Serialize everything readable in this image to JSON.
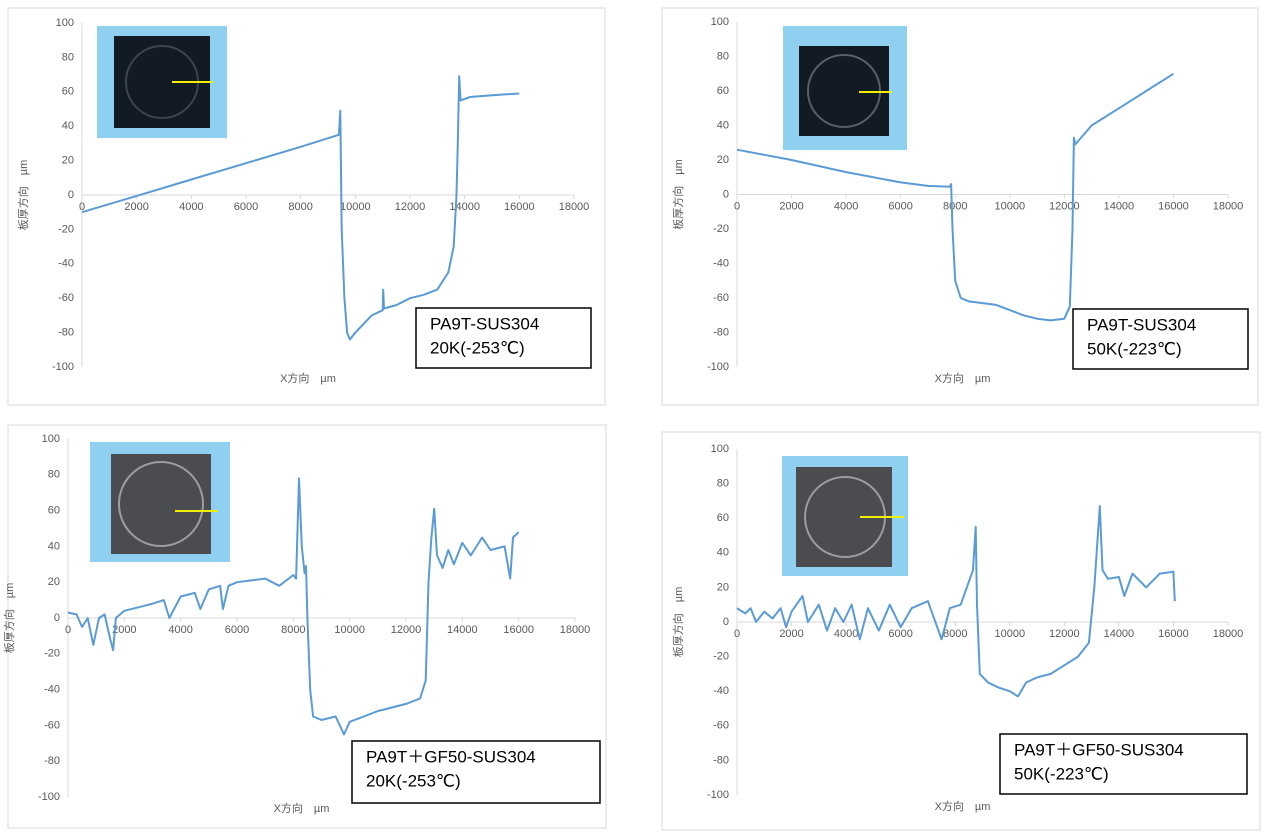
{
  "chart_data": [
    {
      "type": "line",
      "xlabel": "X方向　µm",
      "ylabel": "板厚方向　µm",
      "annotation": [
        "PA9T-SUS304",
        "20K(-253℃)"
      ],
      "xlim": [
        0,
        18000
      ],
      "ylim": [
        -100,
        100
      ],
      "xticks": [
        0,
        2000,
        4000,
        6000,
        8000,
        10000,
        12000,
        14000,
        16000,
        18000
      ],
      "yticks": [
        -100,
        -80,
        -60,
        -40,
        -20,
        0,
        20,
        40,
        60,
        80,
        100
      ],
      "grid": false,
      "series": [
        {
          "color": "#5b9bd5",
          "x": [
            0,
            2000,
            4000,
            6000,
            8000,
            9400,
            9450,
            9500,
            9600,
            9700,
            9800,
            10000,
            10300,
            10600,
            11000,
            11020,
            11050,
            11500,
            12000,
            12500,
            13000,
            13400,
            13600,
            13700,
            13750,
            13800,
            13850,
            14200,
            15000,
            16000
          ],
          "values": [
            -10,
            -0.5,
            9,
            18.5,
            28,
            35,
            49,
            -20,
            -60,
            -80,
            -84,
            -80,
            -75,
            -70,
            -67,
            -55,
            -66,
            -64,
            -60,
            -58,
            -55,
            -45,
            -30,
            0,
            30,
            69,
            55,
            57,
            58,
            59
          ]
        }
      ]
    },
    {
      "type": "line",
      "xlabel": "X方向　µm",
      "ylabel": "板厚方向　µm",
      "annotation": [
        "PA9T-SUS304",
        "50K(-223℃)"
      ],
      "xlim": [
        0,
        18000
      ],
      "ylim": [
        -100,
        100
      ],
      "xticks": [
        0,
        2000,
        4000,
        6000,
        8000,
        10000,
        12000,
        14000,
        16000,
        18000
      ],
      "yticks": [
        -100,
        -80,
        -60,
        -40,
        -20,
        0,
        20,
        40,
        60,
        80,
        100
      ],
      "grid": false,
      "series": [
        {
          "color": "#5b9bd5",
          "x": [
            0,
            2000,
            4000,
            6000,
            7000,
            7800,
            7850,
            7900,
            8000,
            8200,
            8500,
            9500,
            10000,
            10500,
            11000,
            11500,
            12000,
            12200,
            12300,
            12350,
            12400,
            13000,
            14000,
            15000,
            16000
          ],
          "values": [
            26,
            20,
            13,
            7,
            5,
            4.5,
            6,
            -20,
            -50,
            -60,
            -62,
            -64,
            -67,
            -70,
            -72,
            -73,
            -72,
            -65,
            -20,
            33,
            29,
            40,
            50,
            60,
            70
          ]
        }
      ]
    },
    {
      "type": "line",
      "xlabel": "X方向　µm",
      "ylabel": "板厚方向　µm",
      "annotation": [
        "PA9T＋GF50-SUS304",
        "20K(-253℃)"
      ],
      "xlim": [
        0,
        18000
      ],
      "ylim": [
        -100,
        100
      ],
      "xticks": [
        0,
        2000,
        4000,
        6000,
        8000,
        10000,
        12000,
        14000,
        16000,
        18000
      ],
      "yticks": [
        -100,
        -80,
        -60,
        -40,
        -20,
        0,
        20,
        40,
        60,
        80,
        100
      ],
      "grid": false,
      "series": [
        {
          "color": "#5b9bd5",
          "x": [
            0,
            300,
            500,
            700,
            900,
            1100,
            1300,
            1500,
            1600,
            1700,
            2000,
            2500,
            3000,
            3400,
            3600,
            4000,
            4500,
            4700,
            5000,
            5400,
            5500,
            5700,
            6000,
            7000,
            7500,
            8000,
            8100,
            8200,
            8300,
            8400,
            8450,
            8500,
            8600,
            8700,
            9000,
            9500,
            9800,
            10000,
            10500,
            11000,
            11500,
            12000,
            12500,
            12700,
            12800,
            12900,
            13000,
            13100,
            13300,
            13500,
            13700,
            14000,
            14300,
            14700,
            15000,
            15500,
            15700,
            15800,
            16000
          ],
          "values": [
            3,
            2,
            -5,
            0,
            -15,
            0,
            2,
            -12,
            -18,
            0,
            4,
            6,
            8,
            10,
            0,
            12,
            14,
            5,
            16,
            18,
            5,
            18,
            20,
            22,
            18,
            24,
            22,
            78,
            40,
            25,
            29,
            0,
            -40,
            -55,
            -57,
            -55,
            -65,
            -58,
            -55,
            -52,
            -50,
            -48,
            -45,
            -35,
            20,
            45,
            61,
            35,
            28,
            38,
            30,
            42,
            35,
            45,
            38,
            40,
            22,
            45,
            48
          ]
        }
      ]
    },
    {
      "type": "line",
      "xlabel": "X方向　µm",
      "ylabel": "板厚方向　µm",
      "annotation": [
        "PA9T＋GF50-SUS304",
        "50K(-223℃)"
      ],
      "xlim": [
        0,
        18000
      ],
      "ylim": [
        -100,
        100
      ],
      "xticks": [
        0,
        2000,
        4000,
        6000,
        8000,
        10000,
        12000,
        14000,
        16000,
        18000
      ],
      "yticks": [
        -100,
        -80,
        -60,
        -40,
        -20,
        0,
        20,
        40,
        60,
        80,
        100
      ],
      "grid": false,
      "series": [
        {
          "color": "#5b9bd5",
          "x": [
            0,
            300,
            500,
            700,
            1000,
            1300,
            1600,
            1800,
            2000,
            2400,
            2600,
            3000,
            3300,
            3600,
            3900,
            4200,
            4500,
            4800,
            5200,
            5600,
            6000,
            6400,
            7000,
            7500,
            7800,
            8200,
            8650,
            8750,
            8800,
            8900,
            9200,
            9600,
            10000,
            10300,
            10600,
            11000,
            11500,
            12000,
            12500,
            12900,
            13100,
            13300,
            13400,
            13600,
            14000,
            14200,
            14500,
            15000,
            15500,
            16000,
            16050
          ],
          "values": [
            8,
            5,
            8,
            0,
            6,
            2,
            8,
            -3,
            6,
            15,
            0,
            10,
            -5,
            8,
            0,
            10,
            -10,
            8,
            -5,
            10,
            -3,
            8,
            12,
            -10,
            8,
            10,
            30,
            55,
            10,
            -30,
            -35,
            -38,
            -40,
            -43,
            -35,
            -32,
            -30,
            -25,
            -20,
            -12,
            20,
            67,
            30,
            25,
            26,
            15,
            28,
            20,
            28,
            29,
            12
          ]
        }
      ]
    }
  ]
}
